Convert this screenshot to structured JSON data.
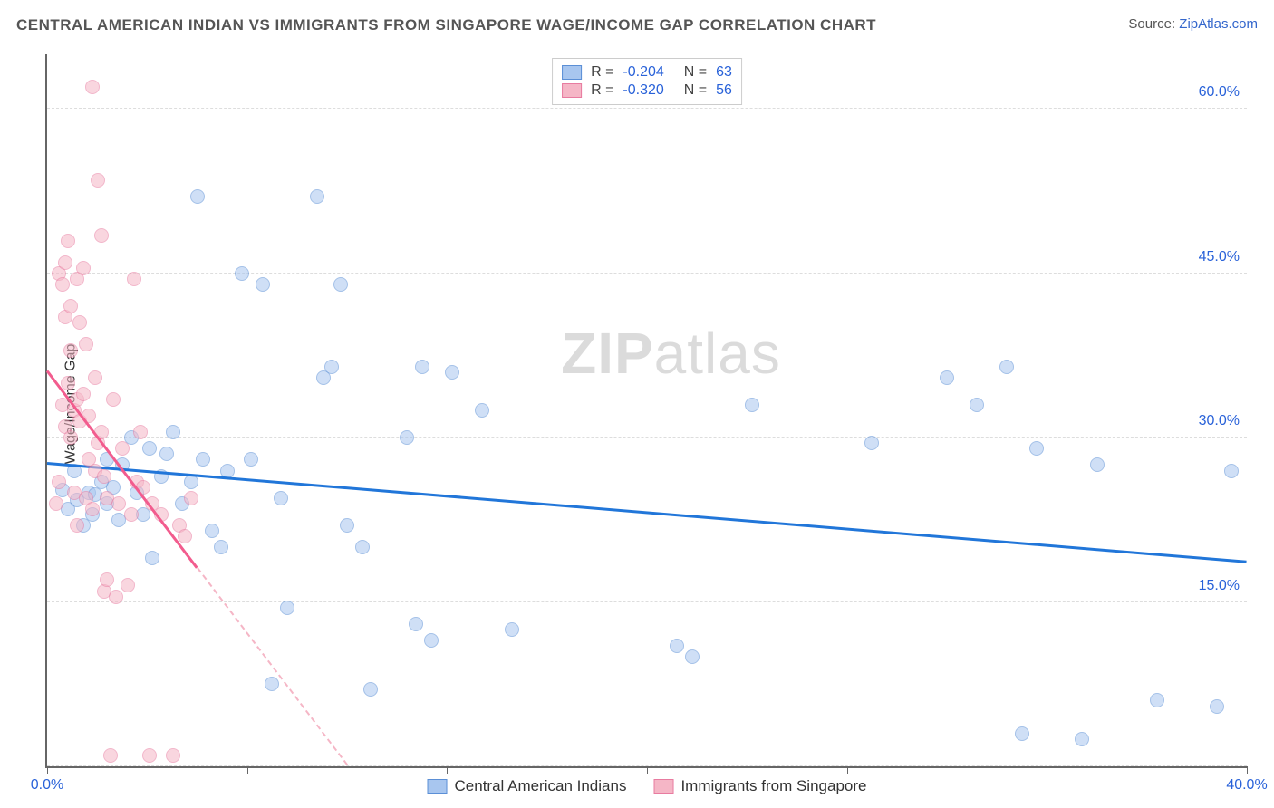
{
  "title": "CENTRAL AMERICAN INDIAN VS IMMIGRANTS FROM SINGAPORE WAGE/INCOME GAP CORRELATION CHART",
  "source_label": "Source: ",
  "source_link": "ZipAtlas.com",
  "ylabel": "Wage/Income Gap",
  "watermark_bold": "ZIP",
  "watermark_light": "atlas",
  "chart": {
    "type": "scatter",
    "xlim": [
      0,
      40
    ],
    "ylim": [
      0,
      65
    ],
    "xticks": [
      0,
      40
    ],
    "xtick_labels": [
      "0.0%",
      "40.0%"
    ],
    "xminor": [
      6.67,
      13.33,
      20,
      26.67,
      33.33
    ],
    "yticks": [
      15,
      30,
      45,
      60
    ],
    "ytick_labels": [
      "15.0%",
      "30.0%",
      "45.0%",
      "60.0%"
    ],
    "ygrid": [
      0,
      15,
      30,
      45,
      60
    ],
    "background_color": "#ffffff",
    "grid_color": "#dddddd",
    "axis_color": "#666666",
    "label_color": "#2962d9",
    "marker_radius": 8,
    "marker_opacity": 0.55,
    "series": [
      {
        "name": "Central American Indians",
        "color_fill": "#a8c6ef",
        "color_stroke": "#5b8fd6",
        "R": "-0.204",
        "N": "63",
        "trend": {
          "x1": 0,
          "y1": 27.5,
          "x2": 40,
          "y2": 18.5,
          "color": "#2176d9",
          "width": 3
        },
        "points": [
          [
            0.5,
            25.2
          ],
          [
            0.7,
            23.5
          ],
          [
            0.9,
            27.0
          ],
          [
            1.0,
            24.3
          ],
          [
            1.2,
            22.0
          ],
          [
            1.4,
            25.0
          ],
          [
            1.5,
            23.0
          ],
          [
            1.6,
            24.8
          ],
          [
            1.8,
            26.0
          ],
          [
            2.0,
            28.0
          ],
          [
            2.0,
            24.0
          ],
          [
            2.2,
            25.5
          ],
          [
            2.4,
            22.5
          ],
          [
            2.5,
            27.5
          ],
          [
            2.8,
            30.0
          ],
          [
            3.0,
            25.0
          ],
          [
            3.2,
            23.0
          ],
          [
            3.4,
            29.0
          ],
          [
            3.5,
            19.0
          ],
          [
            3.8,
            26.5
          ],
          [
            4.0,
            28.5
          ],
          [
            4.2,
            30.5
          ],
          [
            4.5,
            24.0
          ],
          [
            4.8,
            26.0
          ],
          [
            5.0,
            52.0
          ],
          [
            5.2,
            28.0
          ],
          [
            5.5,
            21.5
          ],
          [
            5.8,
            20.0
          ],
          [
            6.0,
            27.0
          ],
          [
            6.5,
            45.0
          ],
          [
            6.8,
            28.0
          ],
          [
            7.2,
            44.0
          ],
          [
            7.5,
            7.5
          ],
          [
            7.8,
            24.5
          ],
          [
            8.0,
            14.5
          ],
          [
            9.0,
            52.0
          ],
          [
            9.2,
            35.5
          ],
          [
            9.5,
            36.5
          ],
          [
            9.8,
            44.0
          ],
          [
            10.0,
            22.0
          ],
          [
            10.5,
            20.0
          ],
          [
            10.8,
            7.0
          ],
          [
            12.0,
            30.0
          ],
          [
            12.3,
            13.0
          ],
          [
            12.5,
            36.5
          ],
          [
            12.8,
            11.5
          ],
          [
            13.5,
            36.0
          ],
          [
            14.5,
            32.5
          ],
          [
            15.5,
            12.5
          ],
          [
            21.0,
            11.0
          ],
          [
            21.5,
            10.0
          ],
          [
            23.5,
            33.0
          ],
          [
            27.5,
            29.5
          ],
          [
            30.0,
            35.5
          ],
          [
            31.0,
            33.0
          ],
          [
            32.0,
            36.5
          ],
          [
            32.5,
            3.0
          ],
          [
            33.0,
            29.0
          ],
          [
            34.5,
            2.5
          ],
          [
            35.0,
            27.5
          ],
          [
            37.0,
            6.0
          ],
          [
            39.0,
            5.5
          ],
          [
            39.5,
            27.0
          ]
        ]
      },
      {
        "name": "Immigrants from Singapore",
        "color_fill": "#f5b6c6",
        "color_stroke": "#e87ba0",
        "R": "-0.320",
        "N": "56",
        "trend": {
          "x1": 0,
          "y1": 36.0,
          "x2": 5,
          "y2": 18.0,
          "color": "#f25c8e",
          "width": 3
        },
        "trend_dash": {
          "x1": 5,
          "y1": 18.0,
          "x2": 10,
          "y2": 0,
          "color": "#f5b6c6"
        },
        "points": [
          [
            0.3,
            24.0
          ],
          [
            0.4,
            26.0
          ],
          [
            0.4,
            45.0
          ],
          [
            0.5,
            44.0
          ],
          [
            0.5,
            33.0
          ],
          [
            0.6,
            41.0
          ],
          [
            0.6,
            31.0
          ],
          [
            0.6,
            46.0
          ],
          [
            0.7,
            35.0
          ],
          [
            0.7,
            48.0
          ],
          [
            0.8,
            38.0
          ],
          [
            0.8,
            30.0
          ],
          [
            0.8,
            42.0
          ],
          [
            0.9,
            32.5
          ],
          [
            0.9,
            25.0
          ],
          [
            1.0,
            44.5
          ],
          [
            1.0,
            33.5
          ],
          [
            1.0,
            22.0
          ],
          [
            1.1,
            40.5
          ],
          [
            1.1,
            31.5
          ],
          [
            1.2,
            34.0
          ],
          [
            1.2,
            45.5
          ],
          [
            1.3,
            24.5
          ],
          [
            1.3,
            38.5
          ],
          [
            1.4,
            32.0
          ],
          [
            1.4,
            28.0
          ],
          [
            1.5,
            62.0
          ],
          [
            1.5,
            23.5
          ],
          [
            1.6,
            27.0
          ],
          [
            1.6,
            35.5
          ],
          [
            1.7,
            29.5
          ],
          [
            1.7,
            53.5
          ],
          [
            1.8,
            48.5
          ],
          [
            1.8,
            30.5
          ],
          [
            1.9,
            16.0
          ],
          [
            1.9,
            26.5
          ],
          [
            2.0,
            24.5
          ],
          [
            2.0,
            17.0
          ],
          [
            2.1,
            1.0
          ],
          [
            2.2,
            33.5
          ],
          [
            2.3,
            15.5
          ],
          [
            2.4,
            24.0
          ],
          [
            2.5,
            29.0
          ],
          [
            2.7,
            16.5
          ],
          [
            2.8,
            23.0
          ],
          [
            2.9,
            44.5
          ],
          [
            3.0,
            26.0
          ],
          [
            3.1,
            30.5
          ],
          [
            3.2,
            25.5
          ],
          [
            3.4,
            1.0
          ],
          [
            3.5,
            24.0
          ],
          [
            3.8,
            23.0
          ],
          [
            4.2,
            1.0
          ],
          [
            4.4,
            22.0
          ],
          [
            4.6,
            21.0
          ],
          [
            4.8,
            24.5
          ]
        ]
      }
    ],
    "legend_items": [
      {
        "label": "Central American Indians",
        "fill": "#a8c6ef",
        "stroke": "#5b8fd6"
      },
      {
        "label": "Immigrants from Singapore",
        "fill": "#f5b6c6",
        "stroke": "#e87ba0"
      }
    ]
  }
}
